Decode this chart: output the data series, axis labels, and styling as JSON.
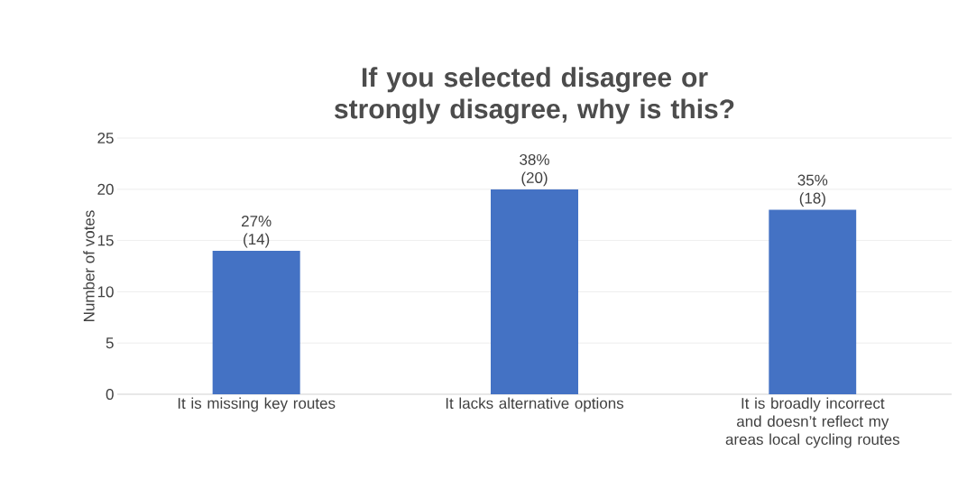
{
  "chart_data": {
    "type": "bar",
    "title": "If you selected disagree or strongly disagree, why is this?",
    "ylabel": "Number of votes",
    "categories": [
      "It is missing key routes",
      "It lacks alternative options",
      "It is broadly incorrect and doesn’t reflect my areas local cycling routes"
    ],
    "values": [
      14,
      20,
      18
    ],
    "value_labels": [
      "27% (14)",
      "38% (20)",
      "35% (18)"
    ],
    "color": "#4472c4",
    "ylim": [
      0,
      25
    ],
    "yticks": [
      0,
      5,
      10,
      15,
      20,
      25
    ],
    "grid": "y"
  }
}
